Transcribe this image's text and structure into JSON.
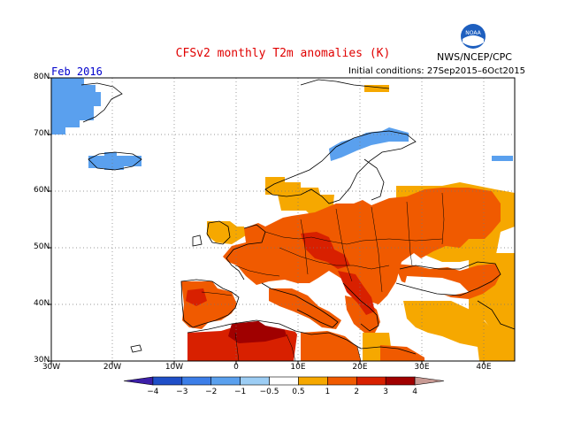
{
  "title": "CFSv2 monthly T2m anomalies (K)",
  "org_label": "NWS/NCEP/CPC",
  "logo_text": "NOAA",
  "month_label": "Feb 2016",
  "initial_conditions": "Initial conditions: 27Sep2015–6Oct2015",
  "lat_labels": [
    "80N",
    "70N",
    "60N",
    "50N",
    "40N",
    "30N"
  ],
  "lon_labels": [
    "30W",
    "20W",
    "10W",
    "0",
    "10E",
    "20E",
    "30E",
    "40E"
  ],
  "colorbar": {
    "labels": [
      "−4",
      "−3",
      "−2",
      "−1",
      "−0.5",
      "0.5",
      "1",
      "2",
      "3",
      "4"
    ],
    "colors": [
      "#3c1fa8",
      "#1f4fc8",
      "#3c7ee8",
      "#5aa0ee",
      "#9ccdf4",
      "#ffffff",
      "#f6a800",
      "#f05a00",
      "#d82000",
      "#a00000",
      "#c89a94"
    ]
  },
  "colors": {
    "title": "#e00000",
    "month": "#0000cc"
  }
}
